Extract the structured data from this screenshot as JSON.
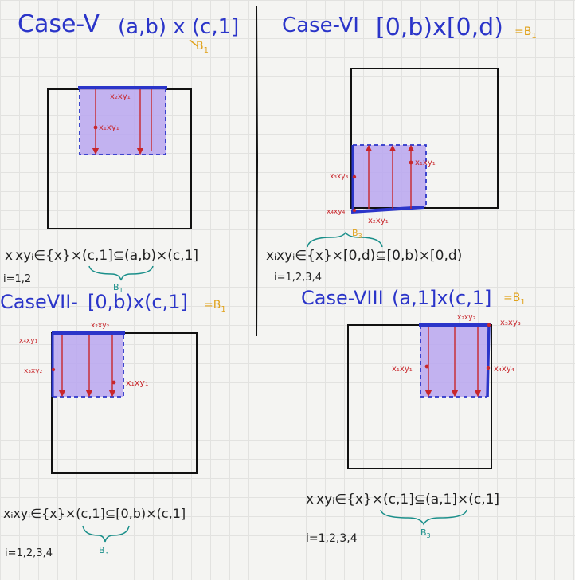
{
  "colors": {
    "region": "#b9a6f0",
    "boundary": "#2b35c9",
    "arrows": "#c8262b",
    "ink": "#222222",
    "annotation": "#e0a21c",
    "brace": "#1a8f8a"
  },
  "cases": [
    {
      "title": "Case-V",
      "domain": "(a,b) x (c,1]",
      "set_tag": "B",
      "set_tag_sub": "1",
      "labels": [
        "x₂xy₁",
        "x₁xy₁"
      ],
      "formula": "xᵢxyᵢ∈{x}×(c,1]⊆(a,b)×(c,1]",
      "brace_label": "B",
      "brace_sub": "1",
      "index_note": "i=1,2"
    },
    {
      "title": "Case-VI",
      "domain": "[0,b)x[0,d)",
      "set_tag": "=B",
      "set_tag_sub": "1",
      "labels": [
        "x₁xy₁",
        "x₃xy₃",
        "x₄xy₄",
        "x₂xy₁"
      ],
      "formula": "xᵢxyᵢ∈{x}×[0,d)⊆[0,b)×[0,d)",
      "brace_label": "B",
      "brace_sub": "3",
      "index_note": "i=1,2,3,4"
    },
    {
      "title": "CaseVII-",
      "domain": "[0,b)x(c,1]",
      "set_tag": "=B",
      "set_tag_sub": "1",
      "labels": [
        "x₂xy₂",
        "x₄xy₁",
        "x₃xy₂",
        "x₁xy₁"
      ],
      "formula": "xᵢxyᵢ∈{x}×(c,1]⊆[0,b)×(c,1]",
      "brace_label": "B",
      "brace_sub": "3",
      "index_note": "i=1,2,3,4"
    },
    {
      "title": "Case-VIII",
      "domain": "(a,1]x(c,1]",
      "set_tag": "=B",
      "set_tag_sub": "1",
      "labels": [
        "x₂xy₂",
        "x₃xy₃",
        "x₁xy₁",
        "x₄xy₄"
      ],
      "formula": "xᵢxyᵢ∈{x}×(c,1]⊆(a,1]×(c,1]",
      "brace_label": "B",
      "brace_sub": "3",
      "index_note": "i=1,2,3,4"
    }
  ]
}
